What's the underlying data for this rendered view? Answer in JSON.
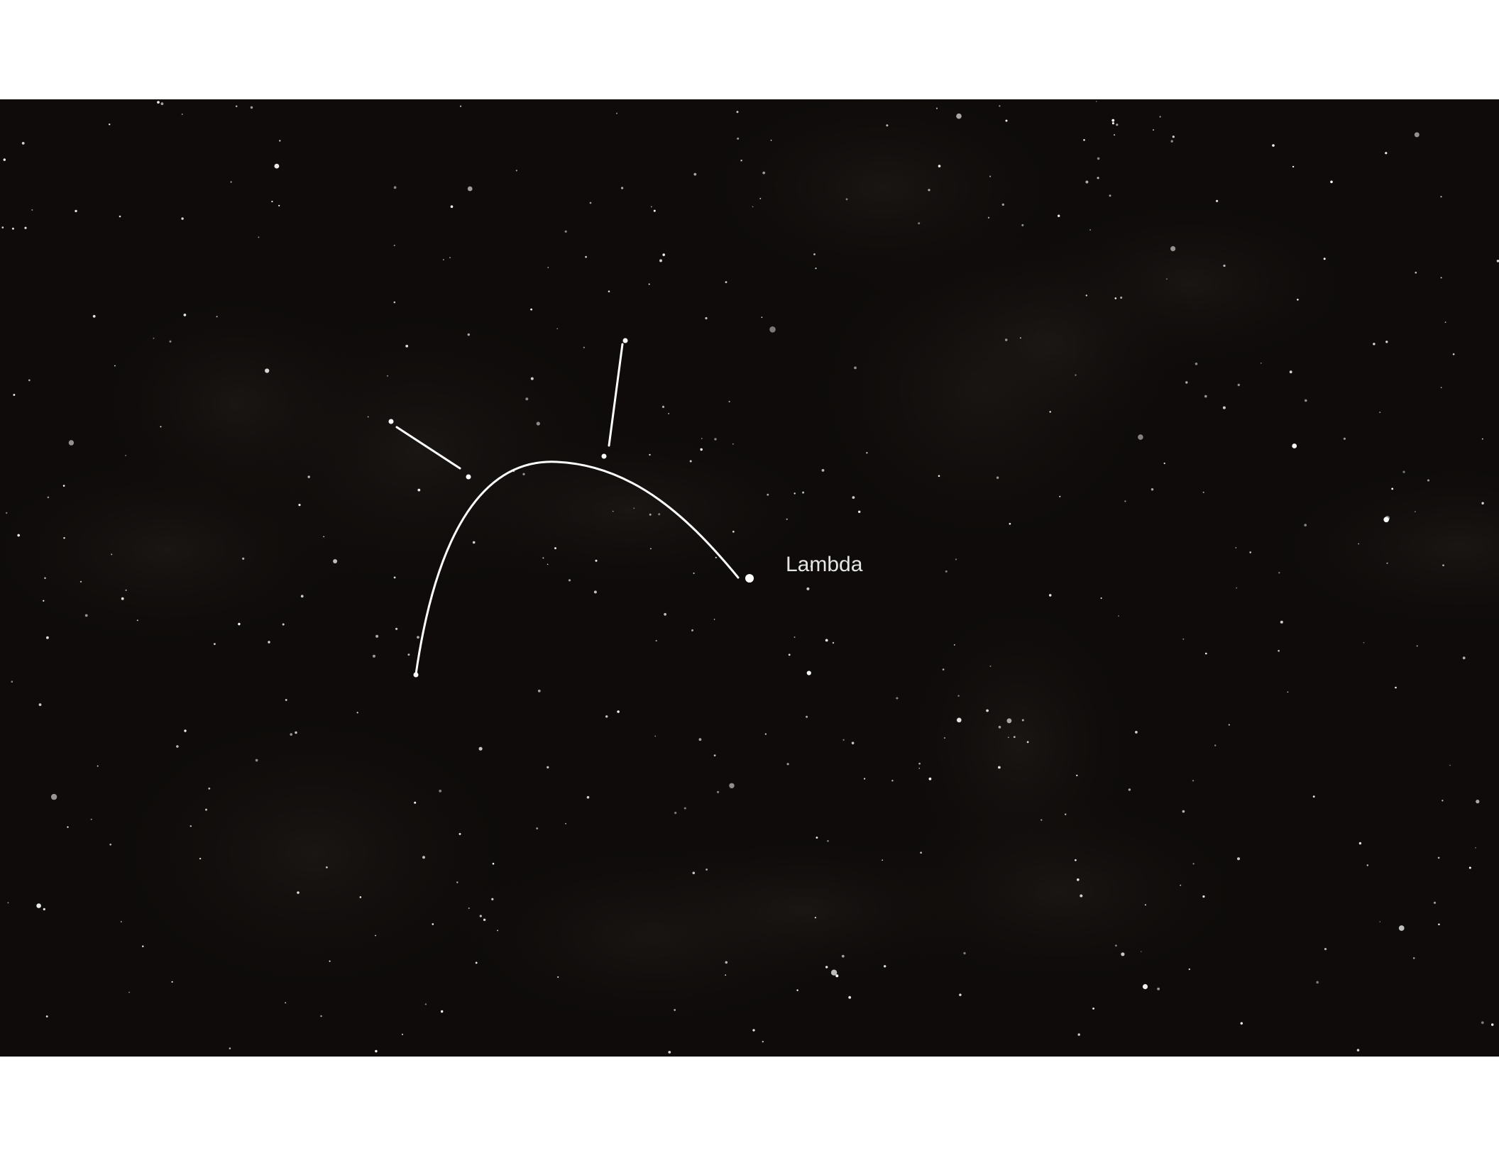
{
  "label": "Lambda"
}
